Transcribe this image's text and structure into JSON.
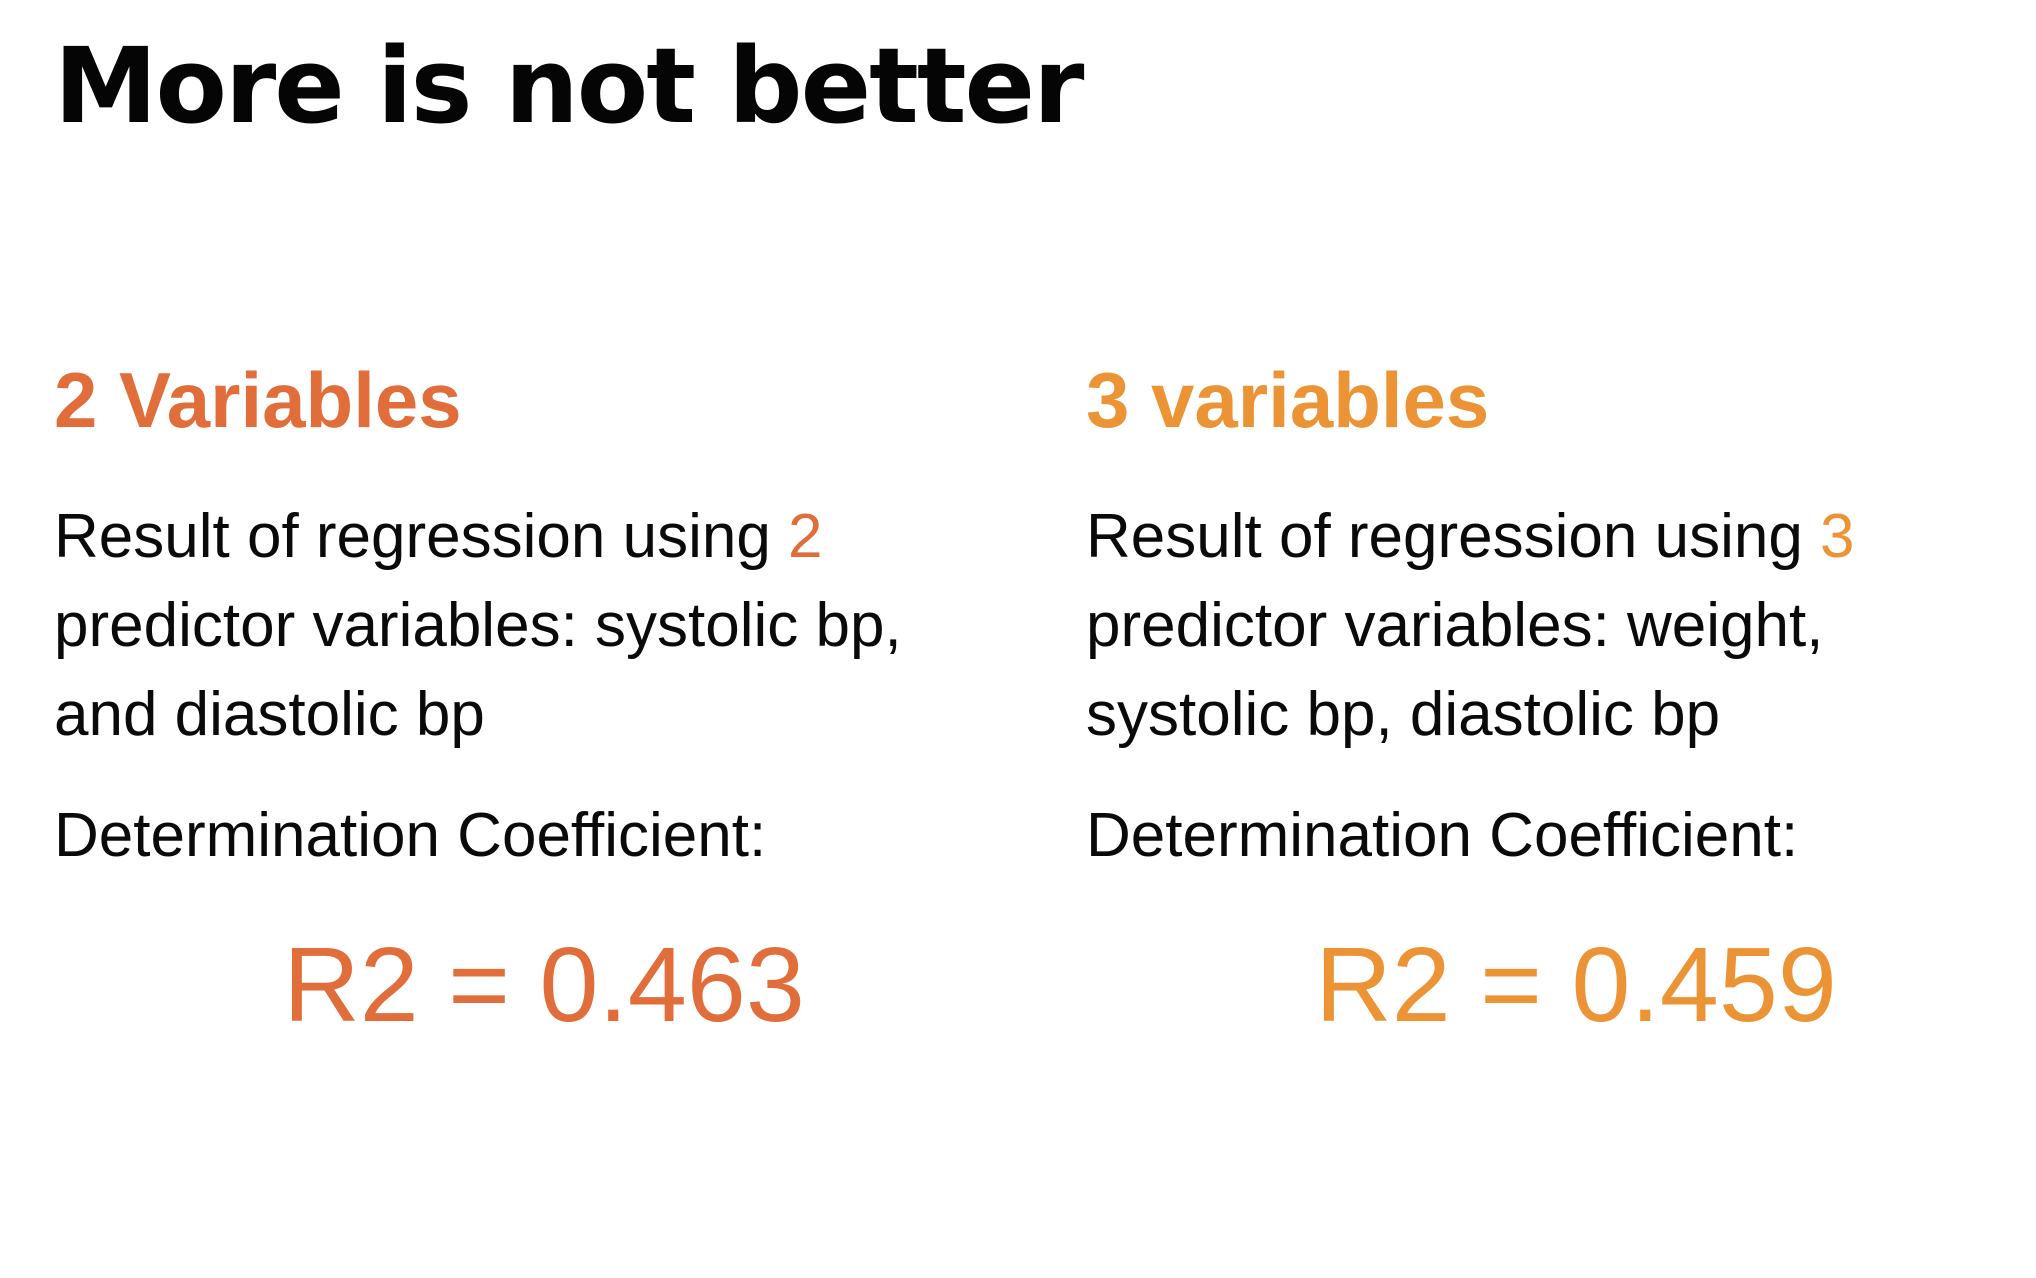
{
  "title": "More is not better",
  "colors": {
    "left_accent": "#e06d3a",
    "right_accent": "#ec9435",
    "text": "#0a0a0a"
  },
  "columns": [
    {
      "heading": "2 Variables",
      "body_prefix": "Result of regression using ",
      "body_count": "2",
      "body_suffix": " predictor variables: systolic bp, and diastolic bp",
      "coefficient_label": "Determination Coefficient:",
      "r2": "R2 = 0.463"
    },
    {
      "heading": "3 variables",
      "body_prefix": "Result of regression using ",
      "body_count": "3",
      "body_suffix": " predictor variables: weight, systolic bp, diastolic bp",
      "coefficient_label": "Determination Coefficient:",
      "r2": "R2 = 0.459"
    }
  ]
}
